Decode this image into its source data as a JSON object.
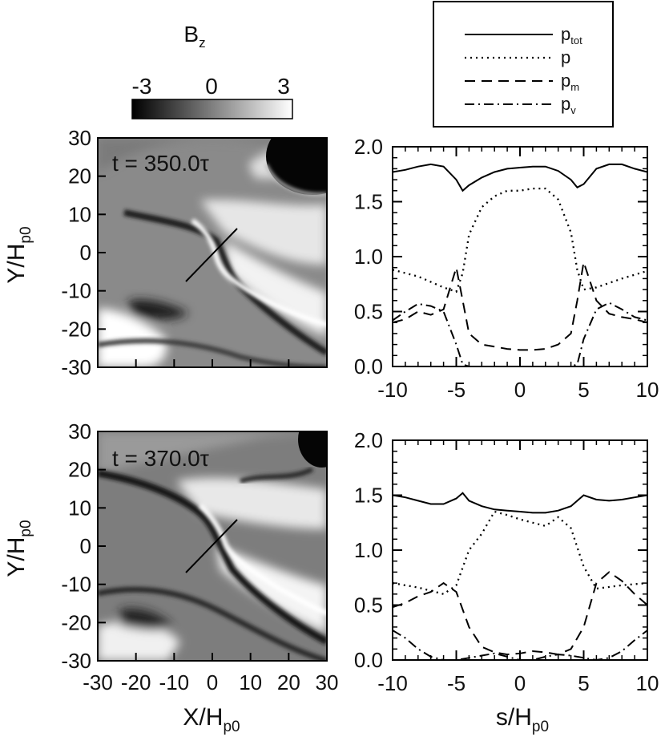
{
  "colorbar": {
    "label": "B",
    "label_sub": "z",
    "ticks": [
      "-3",
      "0",
      "3"
    ],
    "range": [
      -3,
      3
    ]
  },
  "legend": {
    "entries": [
      {
        "base": "p",
        "sub": "tot",
        "style": "solid"
      },
      {
        "base": "p",
        "sub": "",
        "style": "dotted"
      },
      {
        "base": "p",
        "sub": "m",
        "style": "dashed"
      },
      {
        "base": "p",
        "sub": "v",
        "style": "dashdot"
      }
    ]
  },
  "panels": [
    {
      "time_label": "t = 350.0τ"
    },
    {
      "time_label": "t = 370.0τ"
    }
  ],
  "axis_labels": {
    "map_y": {
      "base": "Y/H",
      "sub": "p0"
    },
    "map_x": {
      "base": "X/H",
      "sub": "p0"
    },
    "line_x": {
      "base": "s/H",
      "sub": "p0"
    }
  },
  "chart_data": [
    {
      "type": "heatmap",
      "title": "t = 350.0τ",
      "variable": "B_z",
      "xlim": [
        -30,
        30
      ],
      "ylim": [
        -30,
        30
      ],
      "xticks": [
        "-30",
        "-20",
        "-10",
        "0",
        "10",
        "20",
        "30"
      ],
      "yticks": [
        "30",
        "20",
        "10",
        "0",
        "-10",
        "-20",
        "-30"
      ],
      "cut_line": [
        [
          -6,
          -7
        ],
        [
          6,
          6
        ]
      ]
    },
    {
      "type": "line",
      "xlim": [
        -10,
        10
      ],
      "ylim": [
        0,
        2.0
      ],
      "xticks": [
        "-10",
        "-5",
        "0",
        "5",
        "10"
      ],
      "yticks": [
        "2.0",
        "1.5",
        "1.0",
        "0.5",
        "0.0"
      ],
      "series": [
        {
          "name": "p_tot",
          "style": "solid",
          "x": [
            -10,
            -9,
            -8,
            -7,
            -6,
            -5,
            -4.5,
            -4,
            -3,
            -2,
            -1,
            0,
            1,
            2,
            3,
            4,
            4.5,
            5,
            6,
            7,
            8,
            9,
            10
          ],
          "y": [
            1.77,
            1.79,
            1.82,
            1.84,
            1.82,
            1.7,
            1.6,
            1.65,
            1.72,
            1.77,
            1.8,
            1.81,
            1.82,
            1.82,
            1.78,
            1.7,
            1.63,
            1.66,
            1.8,
            1.84,
            1.84,
            1.8,
            1.77
          ]
        },
        {
          "name": "p",
          "style": "dotted",
          "x": [
            -10,
            -8,
            -6,
            -5,
            -4.5,
            -4,
            -3,
            -2,
            -1,
            0,
            1,
            2,
            3,
            4,
            4.5,
            5,
            6,
            8,
            10
          ],
          "y": [
            0.88,
            0.82,
            0.72,
            0.68,
            0.85,
            1.2,
            1.45,
            1.55,
            1.6,
            1.6,
            1.62,
            1.62,
            1.52,
            1.22,
            0.88,
            0.7,
            0.72,
            0.8,
            0.87
          ]
        },
        {
          "name": "p_m",
          "style": "dashed",
          "x": [
            -10,
            -9,
            -8,
            -7,
            -6,
            -5,
            -4.5,
            -4,
            -3,
            -2,
            -1,
            0,
            1,
            2,
            3,
            4,
            4.5,
            5,
            6,
            7,
            8,
            9,
            10
          ],
          "y": [
            0.4,
            0.43,
            0.5,
            0.47,
            0.52,
            0.9,
            0.6,
            0.3,
            0.2,
            0.18,
            0.16,
            0.15,
            0.15,
            0.16,
            0.2,
            0.3,
            0.6,
            0.95,
            0.6,
            0.48,
            0.45,
            0.43,
            0.4
          ]
        },
        {
          "name": "p_v",
          "style": "dashdot",
          "x": [
            -10,
            -9,
            -8,
            -7,
            -6,
            -5,
            -4.5,
            -4,
            -3,
            0,
            3,
            4,
            4.5,
            5,
            6,
            7,
            8,
            9,
            10
          ],
          "y": [
            0.42,
            0.5,
            0.57,
            0.55,
            0.5,
            0.2,
            0.02,
            0.0,
            0.0,
            0.0,
            0.0,
            0.0,
            0.02,
            0.25,
            0.52,
            0.58,
            0.52,
            0.45,
            0.42
          ]
        }
      ]
    },
    {
      "type": "heatmap",
      "title": "t = 370.0τ",
      "variable": "B_z",
      "xlim": [
        -30,
        30
      ],
      "ylim": [
        -30,
        30
      ],
      "xticks": [
        "-30",
        "-20",
        "-10",
        "0",
        "10",
        "20",
        "30"
      ],
      "yticks": [
        "30",
        "20",
        "10",
        "0",
        "-10",
        "-20",
        "-30"
      ],
      "cut_line": [
        [
          -6,
          -7
        ],
        [
          6,
          6
        ]
      ]
    },
    {
      "type": "line",
      "xlim": [
        -10,
        10
      ],
      "ylim": [
        0,
        2.0
      ],
      "xticks": [
        "-10",
        "-5",
        "0",
        "5",
        "10"
      ],
      "yticks": [
        "2.0",
        "1.5",
        "1.0",
        "0.5",
        "0.0"
      ],
      "series": [
        {
          "name": "p_tot",
          "style": "solid",
          "x": [
            -10,
            -9,
            -8,
            -7,
            -6,
            -5,
            -4.5,
            -4,
            -3,
            -2,
            -1,
            0,
            1,
            2,
            3,
            4,
            4.5,
            5,
            6,
            7,
            8,
            9,
            10
          ],
          "y": [
            1.5,
            1.48,
            1.45,
            1.42,
            1.42,
            1.47,
            1.52,
            1.45,
            1.4,
            1.37,
            1.36,
            1.35,
            1.34,
            1.34,
            1.36,
            1.4,
            1.45,
            1.5,
            1.46,
            1.45,
            1.46,
            1.48,
            1.5
          ]
        },
        {
          "name": "p",
          "style": "dotted",
          "x": [
            -10,
            -8,
            -6,
            -5,
            -4,
            -3,
            -2,
            -1,
            0,
            1,
            2,
            3,
            4,
            5,
            6,
            8,
            10
          ],
          "y": [
            0.7,
            0.66,
            0.6,
            0.68,
            1.0,
            1.15,
            1.35,
            1.32,
            1.28,
            1.25,
            1.22,
            1.3,
            1.2,
            0.85,
            0.65,
            0.68,
            0.7
          ]
        },
        {
          "name": "p_m",
          "style": "dashed",
          "x": [
            -10,
            -9,
            -8,
            -7,
            -6,
            -5,
            -4,
            -3,
            -2,
            -1,
            0,
            1,
            2,
            3,
            4,
            5,
            6,
            7,
            8,
            9,
            10
          ],
          "y": [
            0.48,
            0.52,
            0.58,
            0.62,
            0.7,
            0.62,
            0.3,
            0.12,
            0.07,
            0.05,
            0.06,
            0.08,
            0.07,
            0.05,
            0.1,
            0.3,
            0.7,
            0.8,
            0.72,
            0.6,
            0.5
          ]
        },
        {
          "name": "p_v",
          "style": "dashdot",
          "x": [
            -10,
            -9,
            -8,
            -7,
            -6,
            -5,
            -4,
            -3,
            -2,
            -1,
            0,
            1,
            2,
            3,
            4,
            5,
            6,
            7,
            8,
            9,
            10
          ],
          "y": [
            0.27,
            0.2,
            0.1,
            0.03,
            0.0,
            0.0,
            0.02,
            0.04,
            0.06,
            0.03,
            0.0,
            0.0,
            0.03,
            0.05,
            0.04,
            0.02,
            0.0,
            0.02,
            0.08,
            0.18,
            0.27
          ]
        }
      ]
    }
  ]
}
